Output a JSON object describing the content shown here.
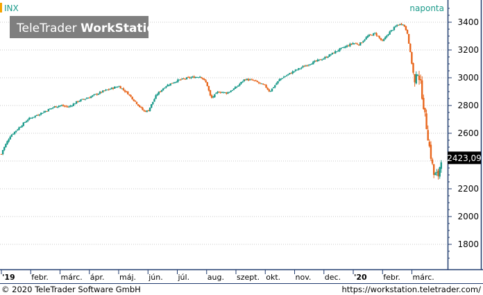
{
  "header": {
    "symbol": "INX",
    "period": "naponta",
    "logo_text_light": "TeleTrader ",
    "logo_text_bold": "WorkStation"
  },
  "footer": {
    "copyright": "© 2020 TeleTrader Software GmbH",
    "url": "https://workstation.teletrader.com/"
  },
  "colors": {
    "up": "#1a9a8a",
    "down": "#e8661c",
    "axis_line": "#1f3a6e",
    "grid": "#c8c8c8",
    "accent": "#f5a300"
  },
  "chart_data": {
    "type": "candlestick",
    "last_value_label": "2423,09",
    "last_value": 2423.09,
    "ylim": [
      1620,
      3560
    ],
    "yticks": [
      1800,
      2000,
      2200,
      2400,
      2600,
      2800,
      3000,
      3200,
      3400
    ],
    "ytick_labels": [
      "1800",
      "2000",
      "2200",
      "2400",
      "2600",
      "2800",
      "3000",
      "3200",
      "3400"
    ],
    "x_labels": [
      {
        "label": "'19",
        "t": 0
      },
      {
        "label": "febr.",
        "t": 1
      },
      {
        "label": "márc.",
        "t": 2
      },
      {
        "label": "ápr.",
        "t": 3
      },
      {
        "label": "máj.",
        "t": 4
      },
      {
        "label": "jún.",
        "t": 5
      },
      {
        "label": "júl.",
        "t": 6
      },
      {
        "label": "aug.",
        "t": 7
      },
      {
        "label": "szept.",
        "t": 8
      },
      {
        "label": "okt.",
        "t": 9
      },
      {
        "label": "nov.",
        "t": 10
      },
      {
        "label": "dec.",
        "t": 11
      },
      {
        "label": "'20",
        "t": 12
      },
      {
        "label": "febr.",
        "t": 13
      },
      {
        "label": "márc.",
        "t": 14
      }
    ],
    "xlim": [
      0,
      15.1
    ],
    "price_path": [
      [
        0.0,
        2450
      ],
      [
        0.05,
        2480
      ],
      [
        0.3,
        2580
      ],
      [
        0.6,
        2640
      ],
      [
        0.9,
        2700
      ],
      [
        1.0,
        2710
      ],
      [
        1.5,
        2760
      ],
      [
        1.8,
        2790
      ],
      [
        2.0,
        2800
      ],
      [
        2.3,
        2790
      ],
      [
        2.6,
        2830
      ],
      [
        3.0,
        2860
      ],
      [
        3.5,
        2905
      ],
      [
        4.0,
        2940
      ],
      [
        4.3,
        2890
      ],
      [
        4.6,
        2820
      ],
      [
        4.85,
        2760
      ],
      [
        5.0,
        2760
      ],
      [
        5.3,
        2880
      ],
      [
        5.6,
        2940
      ],
      [
        6.0,
        2980
      ],
      [
        6.4,
        3000
      ],
      [
        6.8,
        3010
      ],
      [
        7.0,
        2960
      ],
      [
        7.15,
        2850
      ],
      [
        7.4,
        2900
      ],
      [
        7.7,
        2890
      ],
      [
        8.0,
        2930
      ],
      [
        8.3,
        2990
      ],
      [
        8.6,
        2980
      ],
      [
        9.0,
        2940
      ],
      [
        9.15,
        2900
      ],
      [
        9.5,
        2990
      ],
      [
        10.0,
        3050
      ],
      [
        10.5,
        3100
      ],
      [
        11.0,
        3140
      ],
      [
        11.5,
        3200
      ],
      [
        12.0,
        3250
      ],
      [
        12.2,
        3240
      ],
      [
        12.5,
        3300
      ],
      [
        12.75,
        3320
      ],
      [
        13.0,
        3260
      ],
      [
        13.2,
        3320
      ],
      [
        13.5,
        3380
      ],
      [
        13.7,
        3390
      ],
      [
        13.85,
        3320
      ],
      [
        14.0,
        3100
      ],
      [
        14.1,
        2950
      ],
      [
        14.2,
        3050
      ],
      [
        14.3,
        2950
      ],
      [
        14.45,
        2720
      ],
      [
        14.6,
        2500
      ],
      [
        14.75,
        2300
      ],
      [
        14.9,
        2300
      ],
      [
        15.0,
        2420
      ]
    ]
  }
}
